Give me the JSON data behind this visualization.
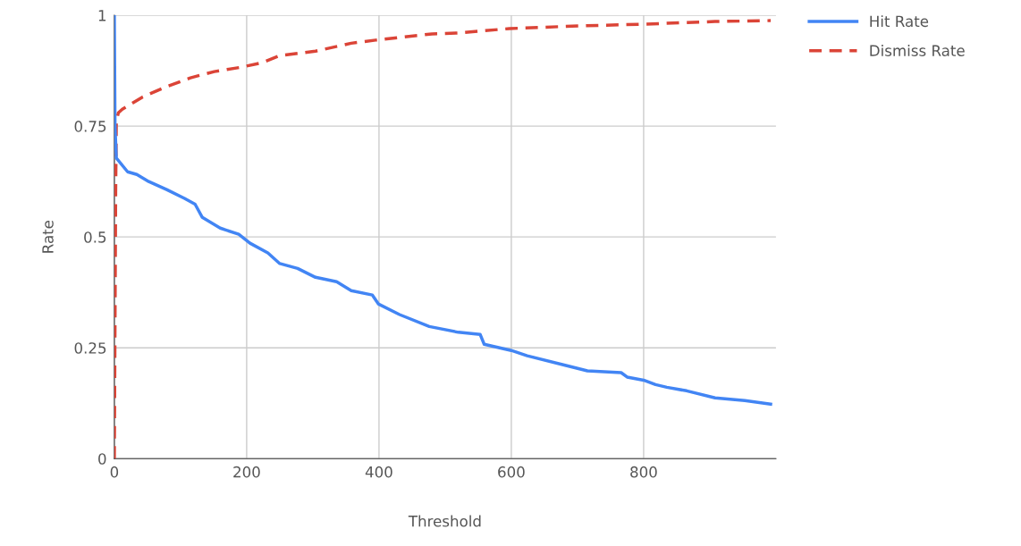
{
  "chart_data": {
    "type": "line",
    "xlabel": "Threshold",
    "ylabel": "Rate",
    "xlim": [
      0,
      1000
    ],
    "xticks": [
      0,
      200,
      400,
      600,
      800
    ],
    "ylim": [
      0,
      1
    ],
    "yticks": [
      0,
      0.25,
      0.5,
      0.75,
      1
    ],
    "grid": true,
    "legend": "top right",
    "marker": "none",
    "series": [
      {
        "name": "Hit Rate",
        "color": "#4285f4",
        "line_style": "solid",
        "x": [
          0,
          1,
          3,
          20,
          34,
          52,
          79,
          106,
          122,
          133,
          160,
          188,
          205,
          232,
          250,
          277,
          304,
          336,
          358,
          390,
          399,
          431,
          476,
          520,
          553,
          559,
          600,
          624,
          680,
          715,
          766,
          775,
          800,
          818,
          835,
          865,
          908,
          953,
          992
        ],
        "values": [
          1,
          0.75,
          0.678,
          0.647,
          0.641,
          0.625,
          0.607,
          0.587,
          0.574,
          0.544,
          0.52,
          0.506,
          0.486,
          0.464,
          0.44,
          0.429,
          0.409,
          0.399,
          0.379,
          0.369,
          0.349,
          0.325,
          0.298,
          0.285,
          0.28,
          0.258,
          0.244,
          0.232,
          0.211,
          0.198,
          0.194,
          0.184,
          0.177,
          0.167,
          0.161,
          0.153,
          0.137,
          0.131,
          0.123
        ]
      },
      {
        "name": "Dismiss Rate",
        "color": "#db4437",
        "line_style": "dashed",
        "x": [
          0,
          1,
          2,
          3,
          6,
          12,
          43,
          79,
          115,
          151,
          192,
          223,
          250,
          304,
          358,
          395,
          480,
          520,
          597,
          701,
          800,
          908,
          992
        ],
        "values": [
          0,
          0.3,
          0.6,
          0.76,
          0.78,
          0.788,
          0.816,
          0.839,
          0.859,
          0.873,
          0.883,
          0.893,
          0.909,
          0.919,
          0.937,
          0.944,
          0.958,
          0.96,
          0.97,
          0.976,
          0.98,
          0.986,
          0.988
        ]
      }
    ]
  }
}
